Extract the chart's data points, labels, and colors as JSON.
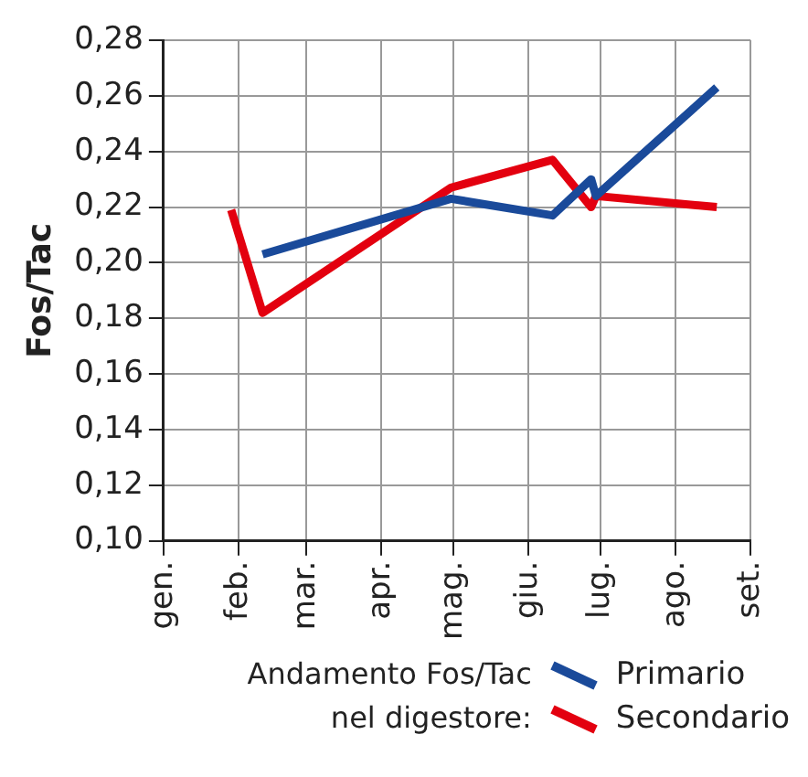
{
  "chart_data": {
    "type": "line",
    "ylabel": "Fos/Tac",
    "legend_title": "Andamento Fos/Tac nel digestore:",
    "legend": "bottom",
    "grid": true,
    "marker": "none",
    "line_style": "solid",
    "xlim": [
      "--01-01",
      "--09-01"
    ],
    "xticks": [
      {
        "value": "--01-01",
        "label": "gen."
      },
      {
        "value": "--02-01",
        "label": "feb."
      },
      {
        "value": "--03-01",
        "label": "mar."
      },
      {
        "value": "--04-01",
        "label": "apr."
      },
      {
        "value": "--05-01",
        "label": "mag."
      },
      {
        "value": "--06-01",
        "label": "giu."
      },
      {
        "value": "--07-01",
        "label": "lug."
      },
      {
        "value": "--08-01",
        "label": "ago."
      },
      {
        "value": "--09-01",
        "label": "set."
      }
    ],
    "ylim": [
      0.1,
      0.28
    ],
    "yticks": [
      {
        "value": 0.1,
        "label": "0,10"
      },
      {
        "value": 0.12,
        "label": "0,12"
      },
      {
        "value": 0.14,
        "label": "0,14"
      },
      {
        "value": 0.16,
        "label": "0,16"
      },
      {
        "value": 0.18,
        "label": "0,18"
      },
      {
        "value": 0.2,
        "label": "0,20"
      },
      {
        "value": 0.22,
        "label": "0,22"
      },
      {
        "value": 0.24,
        "label": "0,24"
      },
      {
        "value": 0.26,
        "label": "0,26"
      },
      {
        "value": 0.28,
        "label": "0,28"
      }
    ],
    "series": [
      {
        "name": "Primario",
        "color": "#1a4a9a",
        "x": [
          "--02-11",
          "--04-30",
          "--06-11",
          "--06-27",
          "--06-29",
          "--08-18"
        ],
        "values": [
          0.203,
          0.223,
          0.217,
          0.23,
          0.224,
          0.263
        ]
      },
      {
        "name": "Secondario",
        "color": "#e3000f",
        "x": [
          "--01-29",
          "--02-11",
          "--04-30",
          "--06-11",
          "--06-27",
          "--06-29",
          "--08-18"
        ],
        "values": [
          0.219,
          0.182,
          0.227,
          0.237,
          0.22,
          0.224,
          0.22
        ]
      }
    ]
  }
}
